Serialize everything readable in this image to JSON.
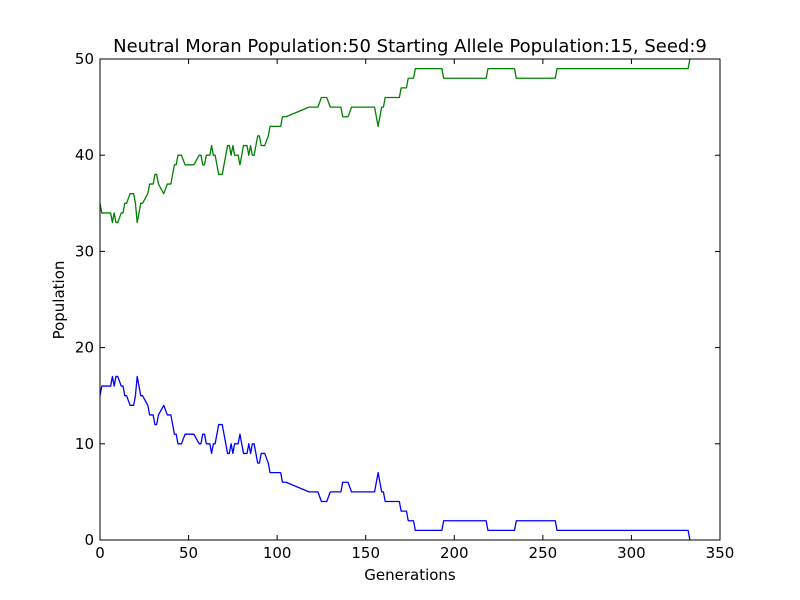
{
  "chart_data": {
    "type": "line",
    "title": "Neutral Moran Population:50 Starting Allele Population:15, Seed:9",
    "xlabel": "Generations",
    "ylabel": "Population",
    "xlim": [
      0,
      350
    ],
    "ylim": [
      0,
      50
    ],
    "xticks": [
      "0",
      "50",
      "100",
      "150",
      "200",
      "250",
      "300",
      "350"
    ],
    "yticks": [
      "0",
      "10",
      "20",
      "30",
      "40",
      "50"
    ],
    "grid": false,
    "legend": "none",
    "series": [
      {
        "color": "#0000ff",
        "x": [
          0,
          1,
          2,
          4,
          6,
          7,
          8,
          9,
          10,
          12,
          13,
          14,
          15,
          17,
          18,
          19,
          20,
          21,
          22,
          23,
          24,
          27,
          28,
          29,
          30,
          31,
          32,
          33,
          36,
          38,
          40,
          41,
          42,
          43,
          44,
          46,
          48,
          50,
          51,
          52,
          53,
          56,
          57,
          58,
          59,
          60,
          61,
          62,
          63,
          64,
          65,
          66,
          67,
          69,
          70,
          71,
          72,
          73,
          74,
          75,
          76,
          77,
          78,
          79,
          80,
          81,
          82,
          83,
          84,
          85,
          86,
          87,
          88,
          89,
          90,
          91,
          93,
          95,
          96,
          100,
          102,
          103,
          104,
          105,
          118,
          119,
          120,
          122,
          123,
          125,
          126,
          128,
          130,
          133,
          134,
          136,
          137,
          140,
          142,
          145,
          148,
          150,
          152,
          153,
          154,
          155,
          156,
          157,
          158,
          159,
          160,
          161,
          162,
          164,
          166,
          168,
          169,
          170,
          171,
          172,
          173,
          174,
          175,
          176,
          177,
          178,
          180,
          182,
          184,
          186,
          188,
          190,
          192,
          193,
          194,
          195,
          200,
          205,
          210,
          215,
          218,
          219,
          220,
          225,
          230,
          234,
          235,
          240,
          245,
          250,
          255,
          257,
          258,
          260,
          270,
          280,
          290,
          300,
          310,
          320,
          325,
          330,
          331,
          332,
          333
        ],
        "values": [
          15,
          16,
          16,
          16,
          16,
          17,
          16,
          17,
          17,
          16,
          16,
          15,
          15,
          14,
          14,
          14,
          15,
          17,
          16,
          15,
          15,
          14,
          13,
          13,
          13,
          12,
          12,
          13,
          14,
          13,
          13,
          12,
          11,
          11,
          10,
          10,
          11,
          11,
          11,
          11,
          11,
          10,
          10,
          11,
          11,
          10,
          10,
          10,
          9,
          10,
          10,
          11,
          12,
          12,
          11,
          10,
          9,
          9,
          10,
          9,
          10,
          10,
          10,
          11,
          10,
          9,
          9,
          9,
          10,
          9,
          10,
          10,
          9,
          8,
          8,
          9,
          9,
          8,
          7,
          7,
          7,
          6,
          6,
          6,
          5,
          5,
          5,
          5,
          5,
          4,
          4,
          4,
          5,
          5,
          5,
          5,
          6,
          6,
          5,
          5,
          5,
          5,
          5,
          5,
          5,
          5,
          6,
          7,
          6,
          5,
          5,
          4,
          4,
          4,
          4,
          4,
          4,
          3,
          3,
          3,
          3,
          2,
          2,
          2,
          2,
          1,
          1,
          1,
          1,
          1,
          1,
          1,
          1,
          1,
          2,
          2,
          2,
          2,
          2,
          2,
          2,
          1,
          1,
          1,
          1,
          1,
          2,
          2,
          2,
          2,
          2,
          2,
          1,
          1,
          1,
          1,
          1,
          1,
          1,
          1,
          1,
          1,
          1,
          1,
          0
        ]
      },
      {
        "color": "#008000",
        "x": [
          0,
          1,
          2,
          4,
          6,
          7,
          8,
          9,
          10,
          12,
          13,
          14,
          15,
          17,
          18,
          19,
          20,
          21,
          22,
          23,
          24,
          27,
          28,
          29,
          30,
          31,
          32,
          33,
          36,
          38,
          40,
          41,
          42,
          43,
          44,
          46,
          48,
          50,
          51,
          52,
          53,
          56,
          57,
          58,
          59,
          60,
          61,
          62,
          63,
          64,
          65,
          66,
          67,
          69,
          70,
          71,
          72,
          73,
          74,
          75,
          76,
          77,
          78,
          79,
          80,
          81,
          82,
          83,
          84,
          85,
          86,
          87,
          88,
          89,
          90,
          91,
          93,
          95,
          96,
          100,
          102,
          103,
          104,
          105,
          118,
          119,
          120,
          122,
          123,
          125,
          126,
          128,
          130,
          133,
          134,
          136,
          137,
          140,
          142,
          145,
          148,
          150,
          152,
          153,
          154,
          155,
          156,
          157,
          158,
          159,
          160,
          161,
          162,
          164,
          166,
          168,
          169,
          170,
          171,
          172,
          173,
          174,
          175,
          176,
          177,
          178,
          180,
          182,
          184,
          186,
          188,
          190,
          192,
          193,
          194,
          195,
          200,
          205,
          210,
          215,
          218,
          219,
          220,
          225,
          230,
          234,
          235,
          240,
          245,
          250,
          255,
          257,
          258,
          260,
          270,
          280,
          290,
          300,
          310,
          320,
          325,
          330,
          331,
          332,
          333
        ],
        "values": [
          35,
          34,
          34,
          34,
          34,
          33,
          34,
          33,
          33,
          34,
          34,
          35,
          35,
          36,
          36,
          36,
          35,
          33,
          34,
          35,
          35,
          36,
          37,
          37,
          37,
          38,
          38,
          37,
          36,
          37,
          37,
          38,
          39,
          39,
          40,
          40,
          39,
          39,
          39,
          39,
          39,
          40,
          40,
          39,
          39,
          40,
          40,
          40,
          41,
          40,
          40,
          39,
          38,
          38,
          39,
          40,
          41,
          41,
          40,
          41,
          40,
          40,
          40,
          39,
          40,
          41,
          41,
          41,
          40,
          41,
          40,
          40,
          41,
          42,
          42,
          41,
          41,
          42,
          43,
          43,
          43,
          44,
          44,
          44,
          45,
          45,
          45,
          45,
          45,
          46,
          46,
          46,
          45,
          45,
          45,
          45,
          44,
          44,
          45,
          45,
          45,
          45,
          45,
          45,
          45,
          45,
          44,
          43,
          44,
          45,
          45,
          46,
          46,
          46,
          46,
          46,
          46,
          47,
          47,
          47,
          47,
          48,
          48,
          48,
          48,
          49,
          49,
          49,
          49,
          49,
          49,
          49,
          49,
          49,
          48,
          48,
          48,
          48,
          48,
          48,
          48,
          49,
          49,
          49,
          49,
          49,
          48,
          48,
          48,
          48,
          48,
          48,
          49,
          49,
          49,
          49,
          49,
          49,
          49,
          49,
          49,
          49,
          49,
          49,
          50
        ]
      }
    ]
  }
}
